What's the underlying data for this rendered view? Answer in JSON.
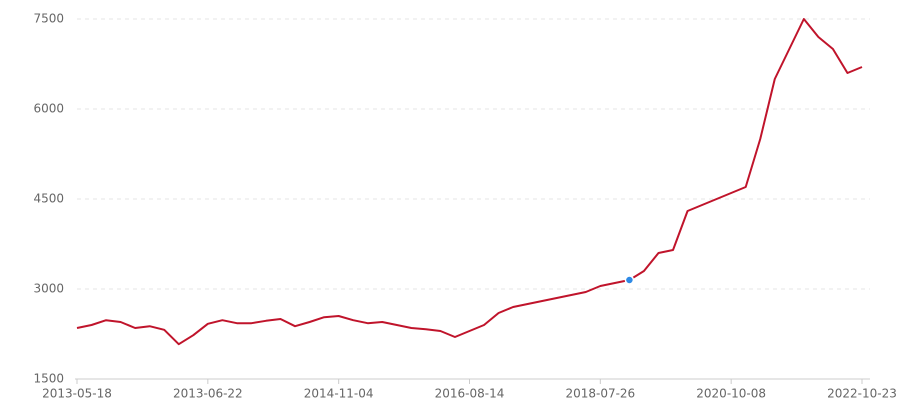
{
  "chart_data": {
    "type": "line",
    "categories": [
      "2013-05-18",
      null,
      null,
      null,
      null,
      null,
      null,
      null,
      null,
      "2013-06-22",
      null,
      null,
      null,
      null,
      null,
      null,
      null,
      null,
      "2014-11-04",
      null,
      null,
      null,
      null,
      null,
      null,
      null,
      null,
      "2016-08-14",
      null,
      null,
      null,
      null,
      null,
      null,
      null,
      null,
      "2018-07-26",
      null,
      null,
      null,
      null,
      null,
      null,
      null,
      null,
      "2020-10-08",
      null,
      null,
      null,
      null,
      null,
      null,
      null,
      null,
      "2022-10-23"
    ],
    "series": [
      {
        "color": "#c0142b",
        "values": [
          2350,
          2400,
          2480,
          2450,
          2350,
          2380,
          2320,
          2080,
          2230,
          2420,
          2480,
          2430,
          2430,
          2470,
          2500,
          2380,
          2450,
          2530,
          2550,
          2480,
          2430,
          2450,
          2400,
          2350,
          2330,
          2300,
          2200,
          2300,
          2400,
          2600,
          2700,
          2750,
          2800,
          2850,
          2900,
          2950,
          3050,
          3100,
          3150,
          3300,
          3600,
          3650,
          4300,
          4400,
          4500,
          4600,
          4700,
          5500,
          6500,
          7000,
          7500,
          7200,
          7000,
          6600,
          6700
        ]
      }
    ],
    "highlighted_point": 38,
    "highlight_color": "#2e8ae6",
    "ylim": [
      1500,
      7500
    ],
    "yticks": [
      1500,
      3000,
      4500,
      6000,
      7500
    ],
    "grid": true
  }
}
